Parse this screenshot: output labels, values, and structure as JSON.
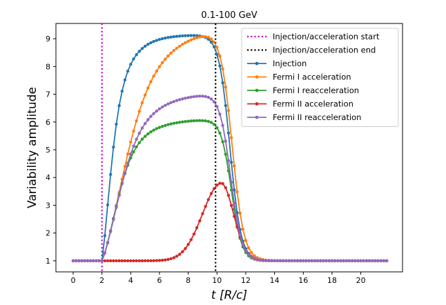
{
  "chart_data": {
    "type": "line",
    "title": "0.1-100 GeV",
    "xlabel": "t [R/c]",
    "ylabel": "Variability amplitude",
    "xlim": [
      -1.2,
      22.9
    ],
    "ylim": [
      0.6,
      9.55
    ],
    "xticks": [
      "0",
      "2",
      "4",
      "6",
      "8",
      "10",
      "12",
      "14",
      "16",
      "18",
      "20"
    ],
    "yticks": [
      "1",
      "2",
      "3",
      "4",
      "5",
      "6",
      "7",
      "8",
      "9"
    ],
    "grid": false,
    "legend_position": "top-right",
    "vlines": [
      {
        "name": "Injection/acceleration start",
        "x": 2.0,
        "color": "#cc00cc",
        "style": "dotted"
      },
      {
        "name": "Injection/acceleration end",
        "x": 9.9,
        "color": "#000000",
        "style": "dotted"
      }
    ],
    "series": [
      {
        "name": "Injection",
        "color": "#1f77b4",
        "marker": "circle",
        "curve": {
          "kind": "rise-decay",
          "base": 1.0,
          "plateau": 9.15,
          "t_start": 2.0,
          "t_end": 9.9,
          "rise_timescale": 1.2,
          "rise_shift": 0.3,
          "decay_timescale": 0.85,
          "decay_shift": 1.0
        }
      },
      {
        "name": "Fermi I acceleration",
        "color": "#ff7f0e",
        "marker": "circle",
        "curve": {
          "kind": "rise-decay",
          "base": 1.0,
          "plateau": 9.55,
          "t_start": 2.0,
          "t_end": 9.9,
          "rise_timescale": 2.75,
          "rise_shift": 1.2,
          "decay_timescale": 0.9,
          "decay_shift": 1.15
        }
      },
      {
        "name": "Fermi I reacceleration",
        "color": "#2ca02c",
        "marker": "circle",
        "curve": {
          "kind": "rise-decay",
          "base": 1.0,
          "plateau": 6.12,
          "t_start": 2.0,
          "t_end": 9.9,
          "rise_timescale": 1.7,
          "rise_shift": 0.85,
          "decay_timescale": 0.8,
          "decay_shift": 1.1
        }
      },
      {
        "name": "Fermi II acceleration",
        "color": "#d62728",
        "marker": "circle",
        "curve": {
          "kind": "gaussian",
          "base": 1.0,
          "peak_x": 10.3,
          "peak_y": 3.8,
          "sigma_left": 1.3,
          "sigma_right": 0.85
        }
      },
      {
        "name": "Fermi II reacceleration",
        "color": "#9467bd",
        "marker": "circle",
        "curve": {
          "kind": "rise-decay",
          "base": 1.0,
          "plateau": 7.1,
          "t_start": 2.0,
          "t_end": 9.9,
          "rise_timescale": 2.1,
          "rise_shift": 0.95,
          "decay_timescale": 0.85,
          "decay_shift": 1.05
        }
      }
    ],
    "x_sampling": {
      "start": 0.0,
      "end": 21.8,
      "step": 0.2
    }
  }
}
